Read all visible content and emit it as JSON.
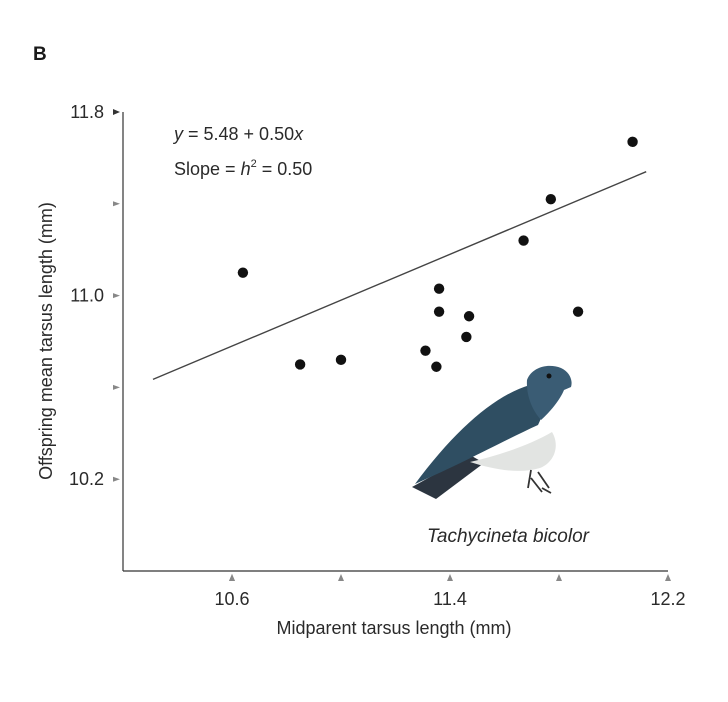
{
  "panel_label": "B",
  "chart_data": {
    "type": "scatter",
    "xlabel": "Midparent tarsus length (mm)",
    "ylabel": "Offspring mean tarsus length (mm)",
    "xlim": [
      10.2,
      12.2
    ],
    "ylim": [
      9.8,
      11.8
    ],
    "x_tick_labels": [
      {
        "value": 10.6,
        "label": "10.6"
      },
      {
        "value": 11.4,
        "label": "11.4"
      },
      {
        "value": 12.2,
        "label": "12.2"
      }
    ],
    "x_minor_ticks": [
      10.6,
      11.0,
      11.8
    ],
    "y_tick_labels": [
      {
        "value": 10.2,
        "label": "10.2"
      },
      {
        "value": 11.0,
        "label": "11.0"
      },
      {
        "value": 11.8,
        "label": "11.8"
      }
    ],
    "y_minor_ticks": [
      10.6,
      11.4
    ],
    "points": [
      {
        "x": 10.64,
        "y": 11.1
      },
      {
        "x": 10.85,
        "y": 10.7
      },
      {
        "x": 11.0,
        "y": 10.72
      },
      {
        "x": 11.31,
        "y": 10.76
      },
      {
        "x": 11.35,
        "y": 10.69
      },
      {
        "x": 11.36,
        "y": 11.03
      },
      {
        "x": 11.36,
        "y": 10.93
      },
      {
        "x": 11.46,
        "y": 10.82
      },
      {
        "x": 11.47,
        "y": 10.91
      },
      {
        "x": 11.67,
        "y": 11.24
      },
      {
        "x": 11.77,
        "y": 11.42
      },
      {
        "x": 11.87,
        "y": 10.93
      },
      {
        "x": 12.07,
        "y": 11.67
      }
    ],
    "fit_line": {
      "intercept": 5.48,
      "slope": 0.5,
      "x_start": 10.31,
      "x_end": 12.12
    },
    "annotations": {
      "equation_pre": "y",
      "equation_post": " = 5.48 + 0.50",
      "equation_var": "x",
      "slope_pre": "Slope = ",
      "slope_h": "h",
      "slope_exp": "2",
      "slope_post": " = 0.50"
    },
    "species_label": "Tachycineta bicolor",
    "grid": false,
    "legend": "none",
    "colors": {
      "points": "#111111",
      "line": "#444444",
      "axes": "#333333",
      "ticks": "#888888"
    }
  }
}
